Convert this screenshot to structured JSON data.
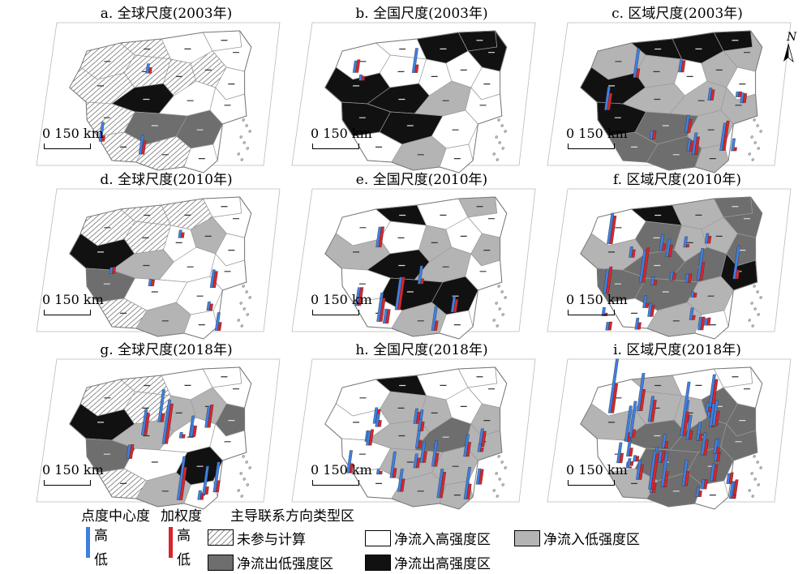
{
  "panels": [
    {
      "id": "a",
      "title": "a. 全球尺度(2003年)",
      "scale": "0 150 km",
      "scale_variant": "a"
    },
    {
      "id": "b",
      "title": "b. 全国尺度(2003年)",
      "scale": "0 150 km",
      "scale_variant": "b"
    },
    {
      "id": "c",
      "title": "c. 区域尺度(2003年)",
      "scale": "0 150 km",
      "scale_variant": "b"
    },
    {
      "id": "d",
      "title": "d. 全球尺度(2010年)",
      "scale": "0 150 km",
      "scale_variant": "a"
    },
    {
      "id": "e",
      "title": "e. 全国尺度(2010年)",
      "scale": "0 150 km",
      "scale_variant": "b"
    },
    {
      "id": "f",
      "title": "f. 区域尺度(2010年)",
      "scale": "0 150 km",
      "scale_variant": "b"
    },
    {
      "id": "g",
      "title": "g. 全球尺度(2018年)",
      "scale": "0 150 km",
      "scale_variant": "a"
    },
    {
      "id": "h",
      "title": "h. 全国尺度(2018年)",
      "scale": "0 150 km",
      "scale_variant": "b"
    },
    {
      "id": "i",
      "title": "i. 区域尺度(2018年)",
      "scale": "0 150 km",
      "scale_variant": "b"
    }
  ],
  "north_label": "N",
  "legend": {
    "degree_title": "点度中心度",
    "weight_title": "加权度",
    "type_title": "主导联系方向类型区",
    "high": "高",
    "low": "低",
    "types": [
      {
        "label": "未参与计算",
        "fill": "hatch"
      },
      {
        "label": "净流入高强度区",
        "fill": "#ffffff"
      },
      {
        "label": "净流入低强度区",
        "fill": "#b4b4b4"
      },
      {
        "label": "净流出低强度区",
        "fill": "#6e6e6e"
      },
      {
        "label": "净流出高强度区",
        "fill": "#111111"
      }
    ]
  },
  "colors": {
    "degree_bar": "#3f7fe0",
    "weight_bar": "#d7262b",
    "hatch": "#555555",
    "boundary": "#9a9a9a"
  }
}
